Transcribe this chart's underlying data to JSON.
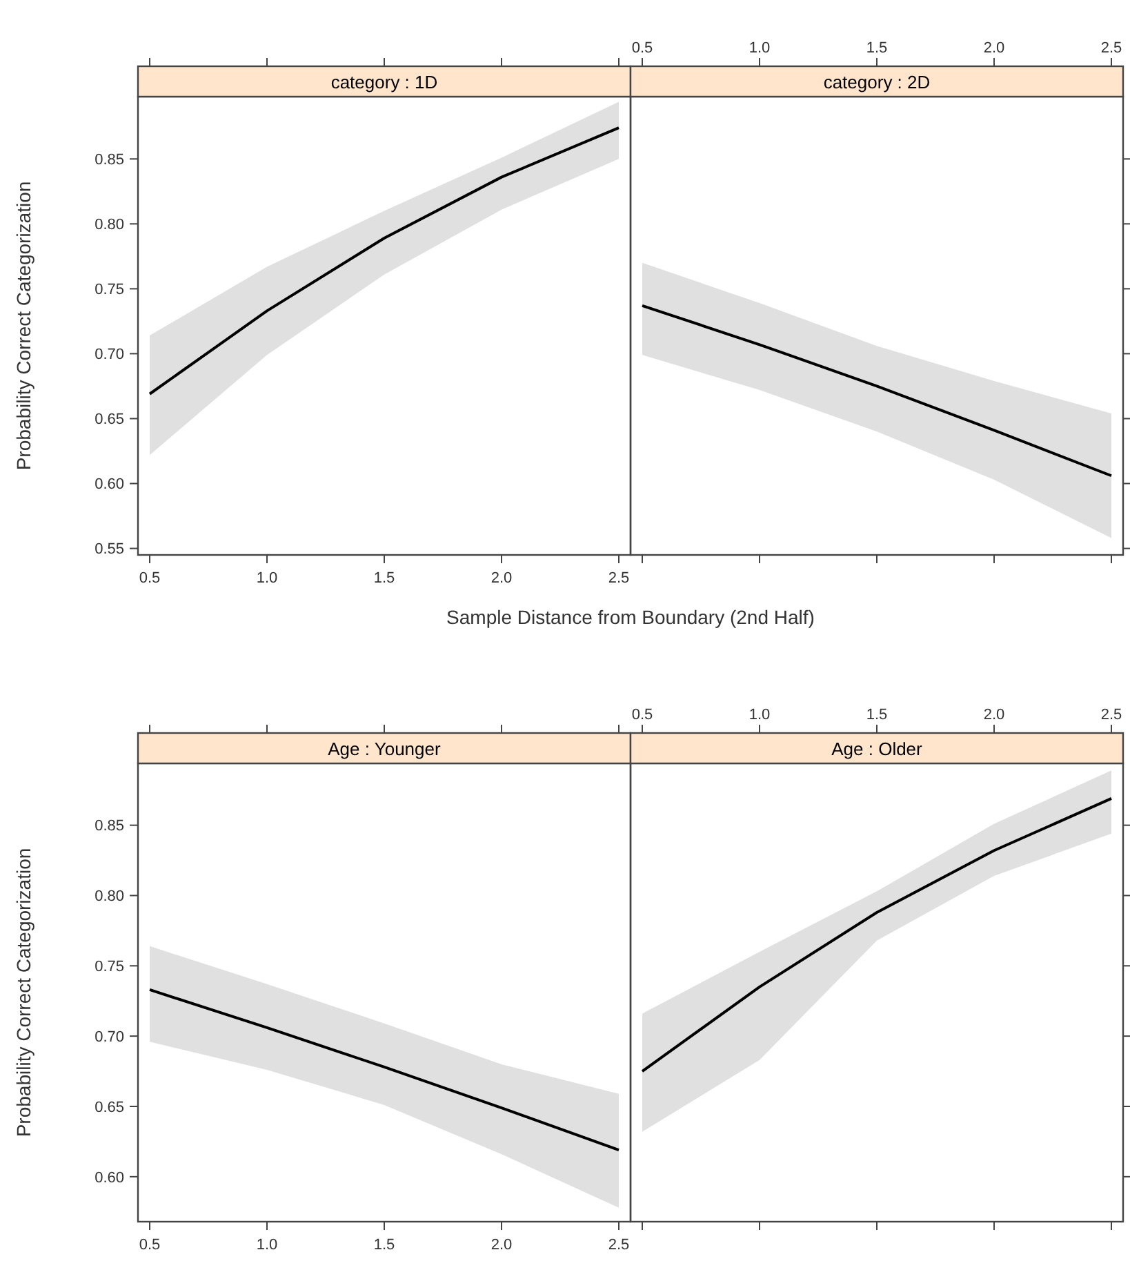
{
  "chart_data": [
    {
      "type": "line",
      "title": "category : 1D",
      "xlabel": "Sample Distance from Boundary (2nd Half)",
      "ylabel": "Probability Correct Categorization",
      "x": [
        0.5,
        1,
        1.5,
        2,
        2.5
      ],
      "xlim": [
        0.45,
        2.55
      ],
      "xticks": [
        {
          "value": 0.5,
          "label": "0.5"
        },
        {
          "value": 1,
          "label": "1.0"
        },
        {
          "value": 1.5,
          "label": "1.5"
        },
        {
          "value": 2,
          "label": "2.0"
        },
        {
          "value": 2.5,
          "label": "2.5"
        }
      ],
      "ylim": [
        0.545,
        0.898
      ],
      "yticks": [
        {
          "value": 0.55,
          "label": "0.55"
        },
        {
          "value": 0.6,
          "label": "0.60"
        },
        {
          "value": 0.65,
          "label": "0.65"
        },
        {
          "value": 0.7,
          "label": "0.70"
        },
        {
          "value": 0.75,
          "label": "0.75"
        },
        {
          "value": 0.8,
          "label": "0.80"
        },
        {
          "value": 0.85,
          "label": "0.85"
        }
      ],
      "grid": false,
      "series": [
        {
          "color": "#000000",
          "values": [
            0.669,
            0.733,
            0.789,
            0.836,
            0.874
          ],
          "lower": [
            0.622,
            0.699,
            0.761,
            0.811,
            0.85
          ],
          "upper": [
            0.714,
            0.767,
            0.81,
            0.851,
            0.894
          ]
        }
      ]
    },
    {
      "type": "line",
      "title": "category : 2D",
      "x": [
        0.5,
        1,
        1.5,
        2,
        2.5
      ],
      "xlim": [
        0.45,
        2.55
      ],
      "xticks": [
        {
          "value": 0.5,
          "label": "0.5"
        },
        {
          "value": 1,
          "label": "1.0"
        },
        {
          "value": 1.5,
          "label": "1.5"
        },
        {
          "value": 2,
          "label": "2.0"
        },
        {
          "value": 2.5,
          "label": "2.5"
        }
      ],
      "ylim": [
        0.545,
        0.898
      ],
      "yticks": [
        {
          "value": 0.55,
          "label": null
        },
        {
          "value": 0.6,
          "label": null
        },
        {
          "value": 0.65,
          "label": null
        },
        {
          "value": 0.7,
          "label": null
        },
        {
          "value": 0.75,
          "label": null
        },
        {
          "value": 0.8,
          "label": null
        },
        {
          "value": 0.85,
          "label": null
        }
      ],
      "tick_labels": "x",
      "grid": false,
      "series": [
        {
          "color": "#000000",
          "values": [
            0.737,
            0.707,
            0.675,
            0.641,
            0.606
          ],
          "lower": [
            0.699,
            0.672,
            0.64,
            0.603,
            0.558
          ],
          "upper": [
            0.77,
            0.739,
            0.706,
            0.679,
            0.654
          ]
        }
      ]
    },
    {
      "type": "line",
      "title": "Age : Younger",
      "ylabel": "Probability Correct Categorization",
      "x": [
        0.5,
        1,
        1.5,
        2,
        2.5
      ],
      "xlim": [
        0.45,
        2.55
      ],
      "xticks": [
        {
          "value": 0.5,
          "label": "0.5"
        },
        {
          "value": 1,
          "label": "1.0"
        },
        {
          "value": 1.5,
          "label": "1.5"
        },
        {
          "value": 2,
          "label": "2.0"
        },
        {
          "value": 2.5,
          "label": "2.5"
        }
      ],
      "ylim": [
        0.568,
        0.894
      ],
      "yticks": [
        {
          "value": 0.6,
          "label": "0.60"
        },
        {
          "value": 0.65,
          "label": "0.65"
        },
        {
          "value": 0.7,
          "label": "0.70"
        },
        {
          "value": 0.75,
          "label": "0.75"
        },
        {
          "value": 0.8,
          "label": "0.80"
        },
        {
          "value": 0.85,
          "label": "0.85"
        }
      ],
      "grid": false,
      "series": [
        {
          "color": "#000000",
          "values": [
            0.733,
            0.706,
            0.678,
            0.649,
            0.619
          ],
          "lower": [
            0.696,
            0.676,
            0.651,
            0.616,
            0.578
          ],
          "upper": [
            0.764,
            0.737,
            0.709,
            0.68,
            0.659
          ]
        }
      ]
    },
    {
      "type": "line",
      "title": "Age : Older",
      "x": [
        0.5,
        1,
        1.5,
        2,
        2.5
      ],
      "xlim": [
        0.45,
        2.55
      ],
      "xticks": [
        {
          "value": 0.5,
          "label": "0.5"
        },
        {
          "value": 1,
          "label": "1.0"
        },
        {
          "value": 1.5,
          "label": "1.5"
        },
        {
          "value": 2,
          "label": "2.0"
        },
        {
          "value": 2.5,
          "label": "2.5"
        }
      ],
      "ylim": [
        0.568,
        0.894
      ],
      "yticks": [
        {
          "value": 0.6,
          "label": null
        },
        {
          "value": 0.65,
          "label": null
        },
        {
          "value": 0.7,
          "label": null
        },
        {
          "value": 0.75,
          "label": null
        },
        {
          "value": 0.8,
          "label": null
        },
        {
          "value": 0.85,
          "label": null
        }
      ],
      "tick_labels": "x",
      "grid": false,
      "series": [
        {
          "color": "#000000",
          "values": [
            0.675,
            0.735,
            0.788,
            0.832,
            0.869
          ],
          "lower": [
            0.632,
            0.683,
            0.768,
            0.814,
            0.844
          ],
          "upper": [
            0.716,
            0.76,
            0.803,
            0.851,
            0.889
          ]
        }
      ]
    }
  ]
}
